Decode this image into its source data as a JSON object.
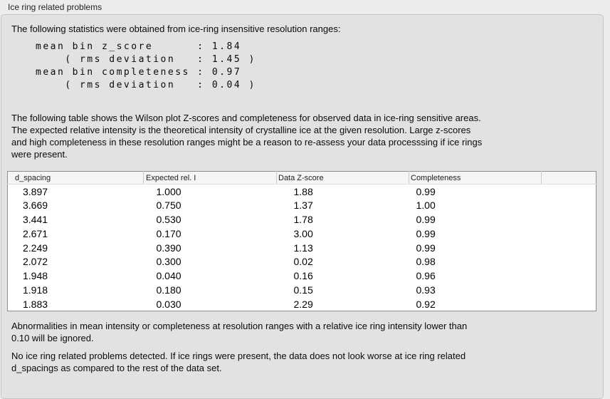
{
  "colors": {
    "window_background": "#ececec",
    "panel_background": "#e2e2e2",
    "panel_border": "#c6c6c6",
    "table_background": "#ffffff",
    "table_border": "#8f8f8f",
    "table_header_background": "#f5f5f5",
    "text": "#000000"
  },
  "panel": {
    "title": "Ice ring related problems",
    "intro_text": "The following statistics were obtained from ice-ring insensitive resolution ranges:",
    "stats_block": "mean bin z_score      : 1.84\n    ( rms deviation   : 1.45 )\nmean bin completeness : 0.97\n    ( rms deviation   : 0.04 )",
    "table_description": "The following table shows the Wilson plot Z-scores and completeness for observed data in ice-ring sensitive areas.\nThe expected relative intensity is the theoretical intensity of crystalline ice at the given resolution. Large z-scores\nand high completeness in these resolution ranges might be a reason to re-assess your data processsing if ice rings\nwere present.",
    "table": {
      "columns": [
        "d_spacing",
        "Expected rel. I",
        "Data Z-score",
        "Completeness"
      ],
      "rows": [
        [
          "3.897",
          "1.000",
          "1.88",
          "0.99"
        ],
        [
          "3.669",
          "0.750",
          "1.37",
          "1.00"
        ],
        [
          "3.441",
          "0.530",
          "1.78",
          "0.99"
        ],
        [
          "2.671",
          "0.170",
          "3.00",
          "0.99"
        ],
        [
          "2.249",
          "0.390",
          "1.13",
          "0.99"
        ],
        [
          "2.072",
          "0.300",
          "0.02",
          "0.98"
        ],
        [
          "1.948",
          "0.040",
          "0.16",
          "0.96"
        ],
        [
          "1.918",
          "0.180",
          "0.15",
          "0.93"
        ],
        [
          "1.883",
          "0.030",
          "2.29",
          "0.92"
        ]
      ]
    },
    "ignore_note": "Abnormalities in mean intensity or completeness at resolution ranges with a relative ice ring intensity lower than\n0.10 will be ignored.",
    "conclusion": "No ice ring related problems detected. If ice rings were present, the data does not look worse at ice ring related\nd_spacings as compared to the rest of the data set."
  }
}
